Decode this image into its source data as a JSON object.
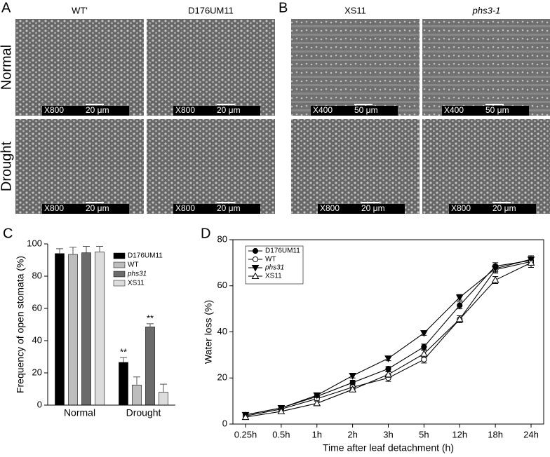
{
  "micrographs": [
    {
      "label": "A",
      "columns": [
        "WT'",
        "D176UM11"
      ],
      "italic_columns": [
        false,
        false
      ],
      "rows": [
        "Normal",
        "Drought"
      ],
      "scales": [
        [
          {
            "mag": "X800",
            "bar": "20 μm"
          },
          {
            "mag": "X800",
            "bar": "20 μm"
          }
        ],
        [
          {
            "mag": "X800",
            "bar": "20 μm"
          },
          {
            "mag": "X800",
            "bar": "20 μm"
          }
        ]
      ]
    },
    {
      "label": "B",
      "columns": [
        "XS11",
        "phs3-1"
      ],
      "italic_columns": [
        false,
        true
      ],
      "scales": [
        [
          {
            "mag": "X400",
            "bar": "50 μm"
          },
          {
            "mag": "X400",
            "bar": "50 μm"
          }
        ],
        [
          {
            "mag": "X800",
            "bar": "20 μm"
          },
          {
            "mag": "X800",
            "bar": "20 μm"
          }
        ]
      ]
    }
  ],
  "chart_data": [
    {
      "type": "bar",
      "panel": "C",
      "ylabel": "Frequency of open stomata (%)",
      "categories": [
        "Normal",
        "Drought"
      ],
      "ylim": [
        0,
        100
      ],
      "yticks": [
        0,
        20,
        40,
        60,
        80,
        100
      ],
      "series": [
        {
          "name": "D176UM11",
          "color": "#000000",
          "italic": false,
          "values": [
            94,
            26.5
          ],
          "errors": [
            3,
            3
          ],
          "significance": [
            null,
            "**"
          ]
        },
        {
          "name": "WT",
          "color": "#bdbdbd",
          "italic": false,
          "values": [
            93.5,
            12.5
          ],
          "errors": [
            4.5,
            5
          ]
        },
        {
          "name": "phs31",
          "color": "#6b6b6b",
          "italic": true,
          "values": [
            94.5,
            48.5
          ],
          "errors": [
            4,
            2
          ],
          "significance": [
            null,
            "**"
          ]
        },
        {
          "name": "XS11",
          "color": "#dcdcdc",
          "italic": false,
          "values": [
            95,
            8
          ],
          "errors": [
            3.5,
            5
          ]
        }
      ]
    },
    {
      "type": "line",
      "panel": "D",
      "xlabel": "Time after leaf detachment (h)",
      "ylabel": "Water loss (%)",
      "categories": [
        "0.25h",
        "0.5h",
        "1h",
        "2h",
        "3h",
        "5h",
        "12h",
        "18h",
        "24h"
      ],
      "ylim": [
        0,
        80
      ],
      "yticks": [
        0,
        20,
        40,
        60,
        80
      ],
      "series": [
        {
          "name": "D176UM11",
          "color": "#000000",
          "marker": "circle",
          "filled": true,
          "italic": false,
          "values": [
            4,
            7,
            12,
            18,
            24,
            33.5,
            51.5,
            68.5,
            71
          ],
          "errors": [
            0.8,
            0.8,
            1,
            1,
            1,
            1.2,
            1.5,
            1.5,
            1.5
          ]
        },
        {
          "name": "WT",
          "color": "#000000",
          "marker": "circle",
          "filled": false,
          "italic": false,
          "values": [
            3.5,
            6.5,
            11,
            16,
            20,
            28,
            45.5,
            67,
            70.5
          ],
          "errors": [
            0.8,
            0.8,
            1,
            1,
            1.5,
            1.5,
            1.5,
            1.5,
            1.5
          ]
        },
        {
          "name": "phs31",
          "color": "#000000",
          "marker": "triangle-down",
          "filled": true,
          "italic": true,
          "values": [
            4,
            7,
            12.5,
            21,
            28.5,
            39.5,
            55,
            67.5,
            71.5
          ],
          "errors": [
            0.8,
            0.8,
            1,
            1,
            1,
            1,
            1.2,
            1.5,
            1.5
          ]
        },
        {
          "name": "XS11",
          "color": "#000000",
          "marker": "triangle-up",
          "filled": false,
          "italic": false,
          "values": [
            3,
            5.5,
            9,
            15,
            21.5,
            30.5,
            45.5,
            62.5,
            70
          ],
          "errors": [
            0.8,
            0.8,
            1,
            1,
            1.2,
            1.5,
            1.5,
            1.5,
            2
          ]
        }
      ]
    }
  ]
}
